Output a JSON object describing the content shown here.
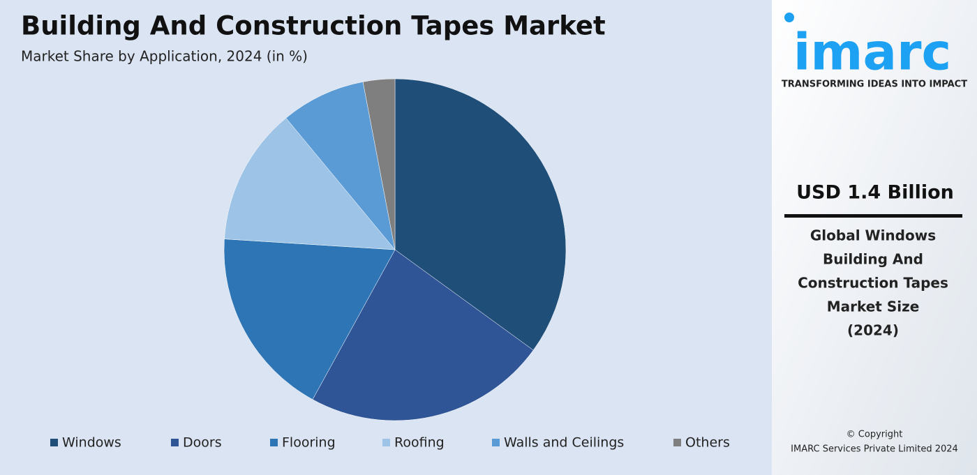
{
  "chart_data": {
    "type": "pie",
    "title": "Building And Construction Tapes Market",
    "subtitle": "Market Share by Application, 2024 (in %)",
    "categories": [
      "Windows",
      "Doors",
      "Flooring",
      "Roofing",
      "Walls and Ceilings",
      "Others"
    ],
    "values": [
      35,
      23,
      18,
      13,
      8,
      3
    ],
    "colors": [
      "#1f4e79",
      "#2f5597",
      "#2e75b6",
      "#9dc3e6",
      "#5b9bd5",
      "#7f7f7f"
    ]
  },
  "side_panel": {
    "logo": "imarc",
    "tagline": "TRANSFORMING IDEAS INTO IMPACT",
    "headline": "USD 1.4 Billion",
    "description": [
      "Global Windows",
      "Building And",
      "Construction Tapes",
      "Market Size",
      "(2024)"
    ],
    "copyright": [
      "© Copyright",
      "IMARC Services Private Limited 2024"
    ]
  }
}
